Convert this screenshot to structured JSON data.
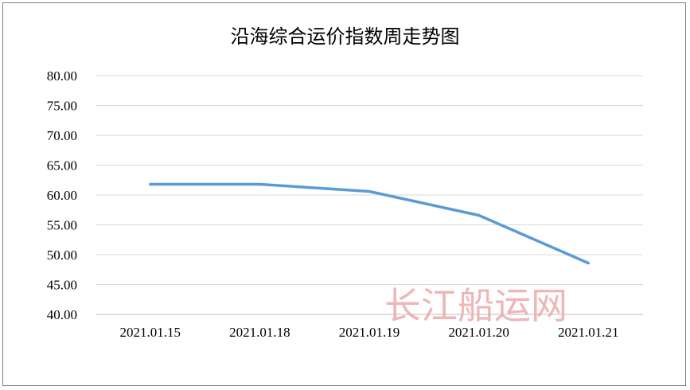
{
  "chart_data": {
    "type": "line",
    "title": "沿海综合运价指数周走势图",
    "categories": [
      "2021.01.15",
      "2021.01.18",
      "2021.01.19",
      "2021.01.20",
      "2021.01.21"
    ],
    "series": [
      {
        "values": [
          61.8,
          61.8,
          60.6,
          56.6,
          48.6
        ]
      }
    ],
    "ylim": [
      40,
      80
    ],
    "yticks": [
      "40.00",
      "45.00",
      "50.00",
      "55.00",
      "60.00",
      "65.00",
      "70.00",
      "75.00",
      "80.00"
    ],
    "grid": true,
    "line_color": "#5b9bd5"
  },
  "watermark": "长江船运网"
}
